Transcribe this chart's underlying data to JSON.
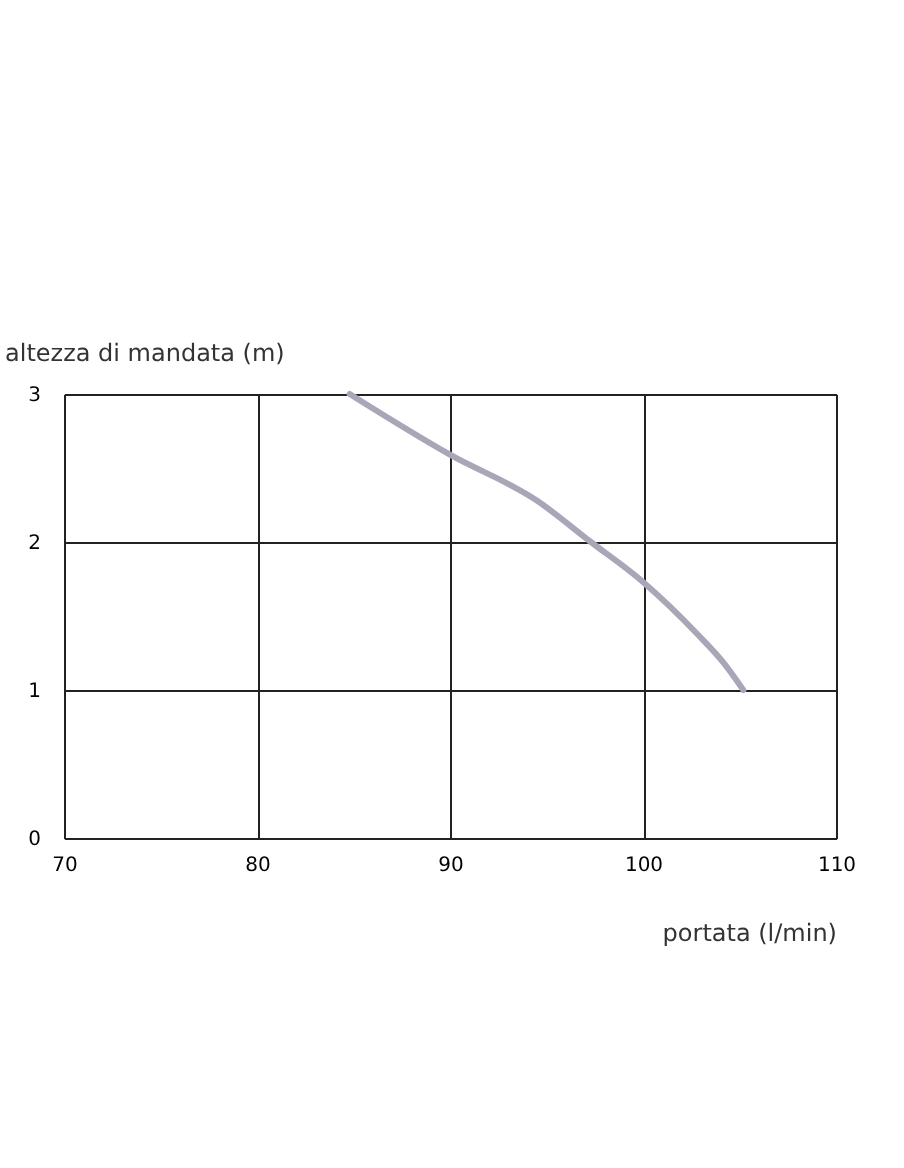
{
  "chart_data": {
    "type": "line",
    "xlabel": "portata (l/min)",
    "ylabel": "altezza di mandata (m)",
    "x": [
      84.8,
      90,
      94.5,
      97.3,
      100,
      102.8,
      104.2,
      105.2
    ],
    "series": [
      {
        "color": "#a9a6b8",
        "values": [
          3,
          2.59,
          2.28,
          2.0,
          1.73,
          1.38,
          1.18,
          1.0
        ]
      }
    ],
    "xlim": [
      70,
      110
    ],
    "xticks": [
      70,
      80,
      90,
      100,
      110
    ],
    "ylim": [
      0,
      3
    ],
    "yticks": [
      0,
      1,
      2,
      3
    ],
    "grid": true,
    "marker": "none",
    "line_style": "solid"
  }
}
